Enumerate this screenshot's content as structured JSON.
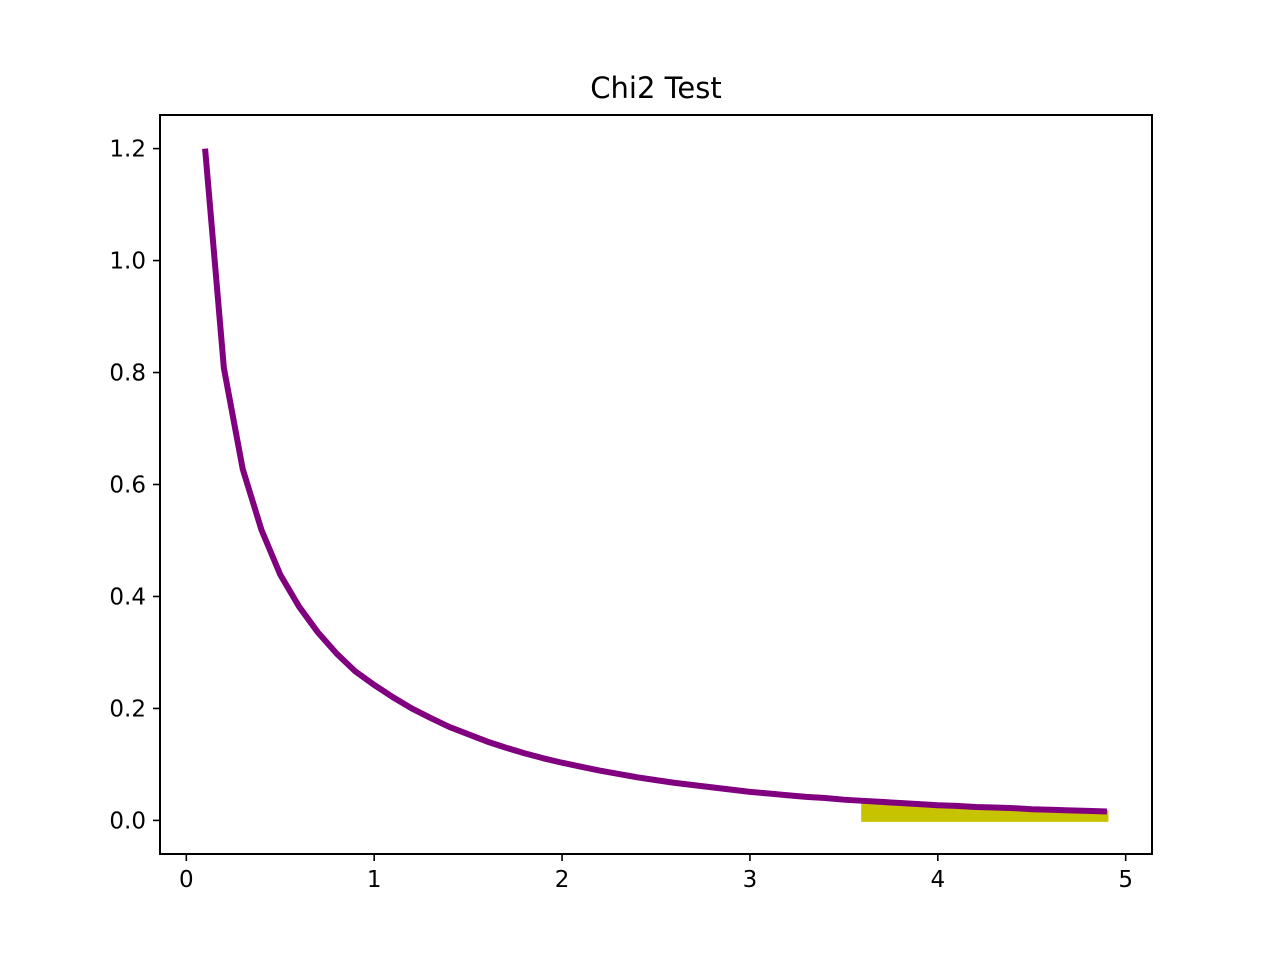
{
  "chart_data": {
    "type": "line",
    "title": "Chi2 Test",
    "xlabel": "",
    "ylabel": "",
    "xlim": [
      -0.14,
      5.14
    ],
    "ylim": [
      -0.06,
      1.26
    ],
    "xticks": [
      0,
      1,
      2,
      3,
      4,
      5
    ],
    "xtick_labels": [
      "0",
      "1",
      "2",
      "3",
      "4",
      "5"
    ],
    "yticks": [
      0.0,
      0.2,
      0.4,
      0.6,
      0.8,
      1.0,
      1.2
    ],
    "ytick_labels": [
      "0.0",
      "0.2",
      "0.4",
      "0.6",
      "0.8",
      "1.0",
      "1.2"
    ],
    "grid": false,
    "series": [
      {
        "kind": "line",
        "color": "#800080",
        "x": [
          0.1,
          0.2,
          0.3,
          0.4,
          0.5,
          0.6,
          0.7,
          0.8,
          0.9,
          1.0,
          1.1,
          1.2,
          1.3,
          1.4,
          1.5,
          1.6,
          1.7,
          1.8,
          1.9,
          2.0,
          2.1,
          2.2,
          2.3,
          2.4,
          2.5,
          2.6,
          2.7,
          2.8,
          2.9,
          3.0,
          3.1,
          3.2,
          3.3,
          3.4,
          3.5,
          3.6,
          3.7,
          3.8,
          3.9,
          4.0,
          4.1,
          4.2,
          4.3,
          4.4,
          4.5,
          4.6,
          4.7,
          4.8,
          4.9
        ],
        "y": [
          1.2,
          0.808,
          0.628,
          0.519,
          0.439,
          0.382,
          0.336,
          0.298,
          0.266,
          0.242,
          0.22,
          0.2,
          0.183,
          0.167,
          0.154,
          0.141,
          0.13,
          0.12,
          0.111,
          0.103,
          0.096,
          0.089,
          0.083,
          0.077,
          0.072,
          0.067,
          0.063,
          0.059,
          0.055,
          0.051,
          0.048,
          0.045,
          0.042,
          0.04,
          0.037,
          0.035,
          0.033,
          0.031,
          0.029,
          0.027,
          0.026,
          0.024,
          0.023,
          0.022,
          0.02,
          0.019,
          0.018,
          0.017,
          0.016
        ]
      },
      {
        "kind": "fill",
        "color": "#c8c300",
        "x_from": 3.6,
        "x_to": 4.9
      }
    ]
  }
}
